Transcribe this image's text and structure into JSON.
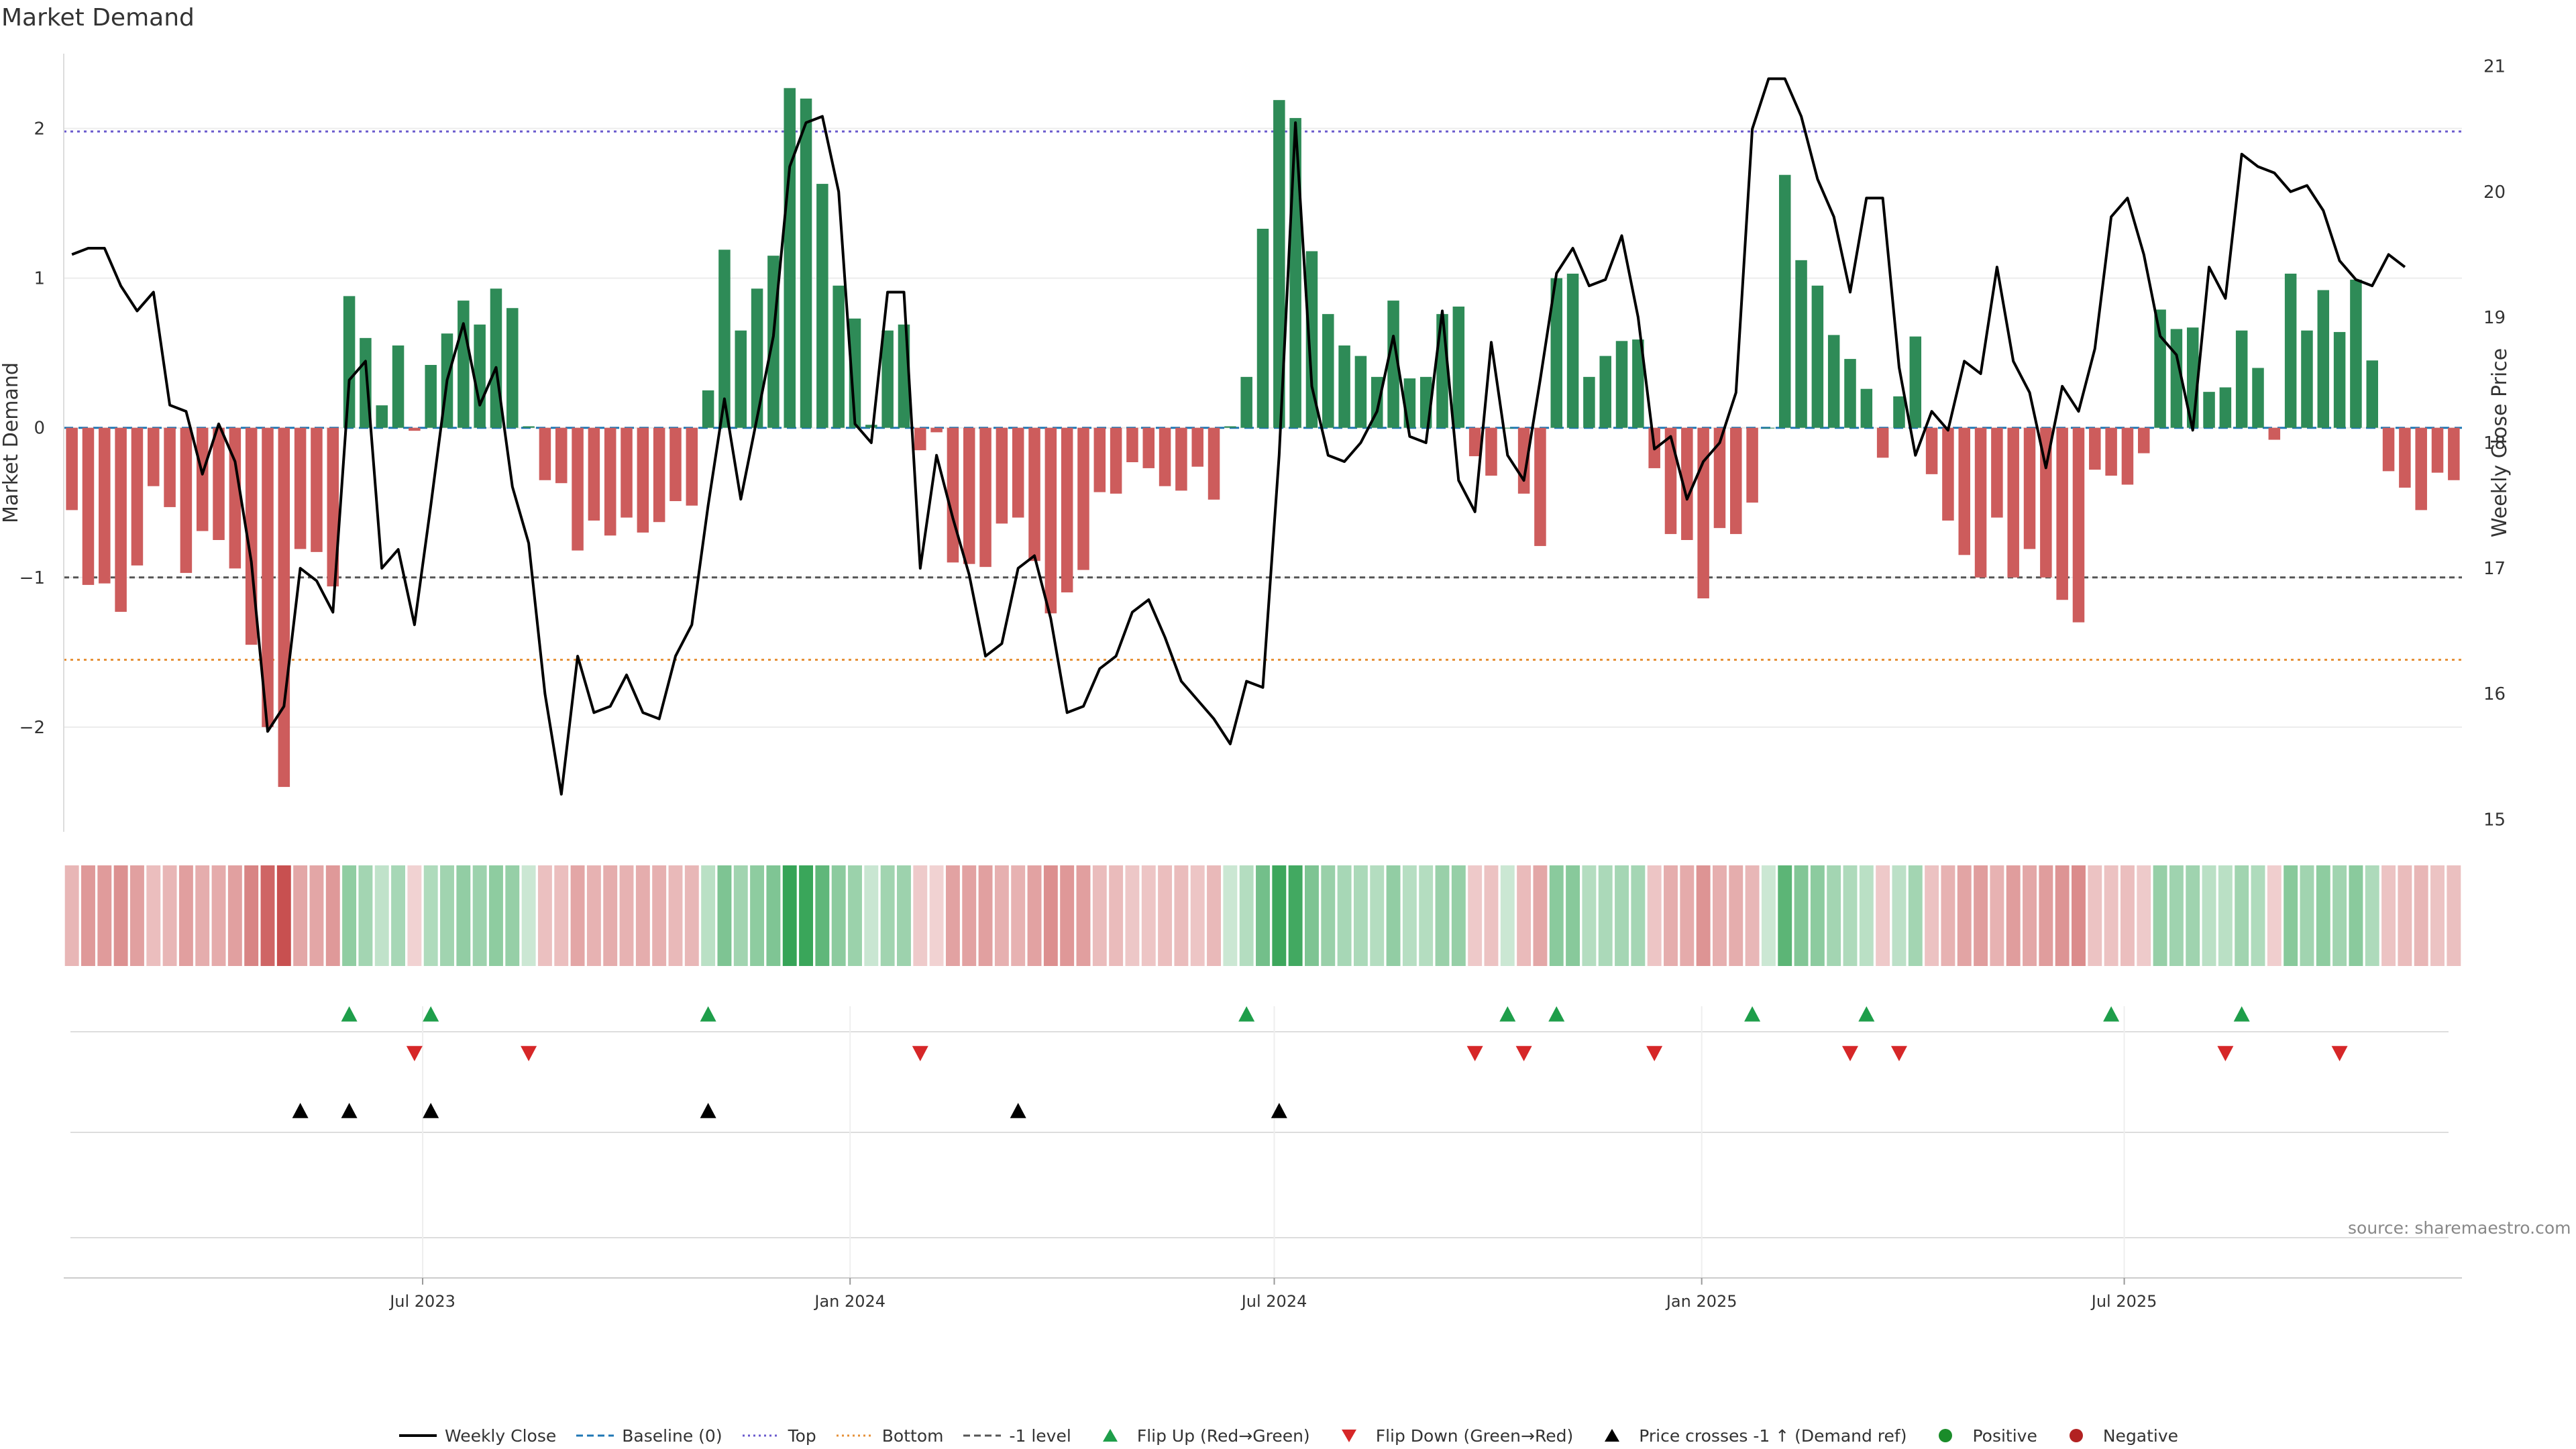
{
  "title": "Market Demand",
  "source": "source: sharemaestro.com",
  "colors": {
    "positive": "#2e8b57",
    "negative": "#cd5c5c",
    "price": "#000000",
    "top": "#6a5acd",
    "bottom": "#e69138",
    "minus1": "#555555",
    "baseline": "#1f77b4",
    "flipUp": "#1e9e4a",
    "flipDown": "#d62728",
    "cross": "#000000",
    "dotPositive": "#1a8c2a",
    "dotNegative": "#b22222"
  },
  "legend": [
    {
      "key": "weekly-close",
      "label": "Weekly Close",
      "style": "line",
      "color": "#000000"
    },
    {
      "key": "baseline",
      "label": "Baseline (0)",
      "style": "dash",
      "color": "#1f77b4"
    },
    {
      "key": "top",
      "label": "Top",
      "style": "dot",
      "color": "#6a5acd"
    },
    {
      "key": "bottom",
      "label": "Bottom",
      "style": "dot",
      "color": "#e69138"
    },
    {
      "key": "minus1",
      "label": "-1 level",
      "style": "dash",
      "color": "#555555"
    },
    {
      "key": "flip-up",
      "label": "Flip Up (Red→Green)",
      "style": "tri-up",
      "color": "#1e9e4a"
    },
    {
      "key": "flip-down",
      "label": "Flip Down (Green→Red)",
      "style": "tri-down",
      "color": "#d62728"
    },
    {
      "key": "cross",
      "label": "Price crosses -1 ↑ (Demand ref)",
      "style": "tri-up",
      "color": "#000000"
    },
    {
      "key": "positive",
      "label": "Positive",
      "style": "dot-marker",
      "color": "#1a8c2a"
    },
    {
      "key": "negative",
      "label": "Negative",
      "style": "dot-marker",
      "color": "#b22222"
    }
  ],
  "chart_data": {
    "type": "bar",
    "title": "Market Demand",
    "ylabel": "Market Demand",
    "y2label": "Weekly Close Price",
    "ylim": [
      -2.7,
      2.5
    ],
    "y2lim": [
      14.9,
      21.1
    ],
    "yticks": [
      -2,
      -1,
      0,
      1,
      2
    ],
    "yticklabels": [
      "−2",
      "−1",
      "0",
      "1",
      "2"
    ],
    "y2ticks": [
      15,
      16,
      17,
      18,
      19,
      20,
      21
    ],
    "xticks": [
      {
        "label": "Jul 2023",
        "week": 21.5
      },
      {
        "label": "Jan 2024",
        "week": 47.7
      },
      {
        "label": "Jul 2024",
        "week": 73.7
      },
      {
        "label": "Jan 2025",
        "week": 99.9
      },
      {
        "label": "Jul 2025",
        "week": 125.8
      }
    ],
    "levels": {
      "top": 1.98,
      "bottom": -1.55,
      "minus1": -1.0,
      "baseline": 0
    },
    "demand": [
      -0.55,
      -1.05,
      -1.04,
      -1.23,
      -0.92,
      -0.39,
      -0.53,
      -0.97,
      -0.69,
      -0.75,
      -0.94,
      -1.45,
      -2.0,
      -2.4,
      -0.81,
      -0.83,
      -1.06,
      0.88,
      0.6,
      0.15,
      0.55,
      -0.02,
      0.42,
      0.63,
      0.85,
      0.69,
      0.93,
      0.8,
      0.01,
      -0.35,
      -0.37,
      -0.82,
      -0.62,
      -0.72,
      -0.6,
      -0.7,
      -0.63,
      -0.49,
      -0.52,
      0.25,
      1.19,
      0.65,
      0.93,
      1.15,
      2.27,
      2.2,
      1.63,
      0.95,
      0.73,
      0.02,
      0.65,
      0.69,
      -0.15,
      -0.03,
      -0.9,
      -0.91,
      -0.93,
      -0.64,
      -0.6,
      -0.89,
      -1.24,
      -1.1,
      -0.95,
      -0.43,
      -0.44,
      -0.23,
      -0.27,
      -0.39,
      -0.42,
      -0.26,
      -0.48,
      0.01,
      0.34,
      1.33,
      2.19,
      2.07,
      1.18,
      0.76,
      0.55,
      0.48,
      0.34,
      0.85,
      0.33,
      0.34,
      0.76,
      0.81,
      -0.19,
      -0.32,
      0.0,
      -0.44,
      -0.79,
      1.0,
      1.03,
      0.34,
      0.48,
      0.58,
      0.59,
      -0.27,
      -0.71,
      -0.75,
      -1.14,
      -0.67,
      -0.71,
      -0.5,
      0.0,
      1.69,
      1.12,
      0.95,
      0.62,
      0.46,
      0.26,
      -0.2,
      0.21,
      0.61,
      -0.31,
      -0.62,
      -0.85,
      -1.0,
      -0.6,
      -1.0,
      -0.81,
      -1.0,
      -1.15,
      -1.3,
      -0.28,
      -0.32,
      -0.38,
      -0.17,
      0.79,
      0.66,
      0.67,
      0.24,
      0.27,
      0.65,
      0.4,
      -0.08,
      1.03,
      0.65,
      0.92,
      0.64,
      0.99,
      0.45,
      -0.29,
      -0.4,
      -0.55,
      -0.3,
      -0.35
    ],
    "weekly_close": [
      19.5,
      19.55,
      19.55,
      19.25,
      19.05,
      19.2,
      18.3,
      18.25,
      17.75,
      18.15,
      17.85,
      17.05,
      15.7,
      15.9,
      17.0,
      16.9,
      16.65,
      18.5,
      18.65,
      17.0,
      17.15,
      16.55,
      17.5,
      18.5,
      18.95,
      18.3,
      18.6,
      17.65,
      17.2,
      16.0,
      15.2,
      16.3,
      15.85,
      15.9,
      16.15,
      15.85,
      15.8,
      16.3,
      16.55,
      17.5,
      18.35,
      17.55,
      18.2,
      18.85,
      20.2,
      20.55,
      20.6,
      20.0,
      18.15,
      18.0,
      19.2,
      19.2,
      17.0,
      17.9,
      17.4,
      16.95,
      16.3,
      16.4,
      17.0,
      17.1,
      16.6,
      15.85,
      15.9,
      16.2,
      16.3,
      16.65,
      16.75,
      16.45,
      16.1,
      15.95,
      15.8,
      15.6,
      16.1,
      16.05,
      17.9,
      20.55,
      18.45,
      17.9,
      17.85,
      18.0,
      18.25,
      18.85,
      18.05,
      18.0,
      19.05,
      17.7,
      17.45,
      18.8,
      17.9,
      17.7,
      18.5,
      19.35,
      19.55,
      19.25,
      19.3,
      19.65,
      19.0,
      17.95,
      18.05,
      17.55,
      17.85,
      18.0,
      18.4,
      20.5,
      20.9,
      20.9,
      20.6,
      20.1,
      19.8,
      19.2,
      19.95,
      19.95,
      18.6,
      17.9,
      18.25,
      18.1,
      18.65,
      18.55,
      19.4,
      18.65,
      18.4,
      17.8,
      18.45,
      18.25,
      18.75,
      19.8,
      19.95,
      19.5,
      18.85,
      18.7,
      18.1,
      19.4,
      19.15,
      20.3,
      20.2,
      20.15,
      20.0,
      20.05,
      19.85,
      19.45,
      19.3,
      19.25,
      19.5,
      19.4
    ],
    "flip_up": [
      17,
      22,
      39,
      72,
      88,
      91,
      103,
      110,
      125,
      133
    ],
    "flip_down": [
      21,
      28,
      52,
      86,
      89,
      97,
      109,
      112,
      132,
      139
    ],
    "price_cross_up": [
      14,
      17,
      22,
      39,
      58,
      74
    ],
    "annotations": [
      "source: sharemaestro.com"
    ]
  }
}
